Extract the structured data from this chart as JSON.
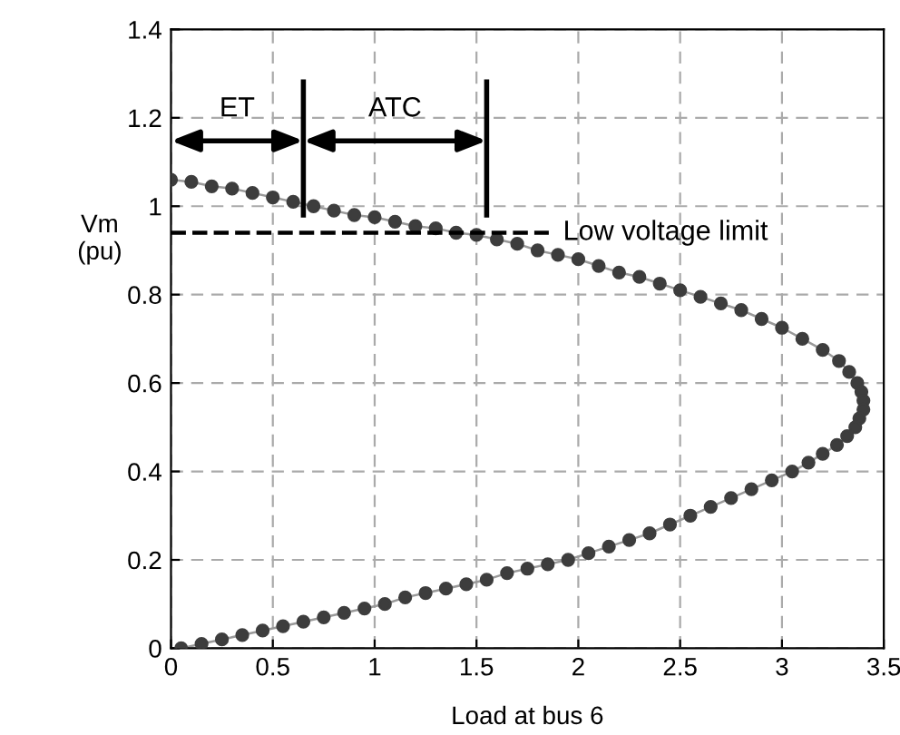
{
  "chart_data": {
    "type": "line",
    "xlabel": "Load at bus 6",
    "ylabel": "Vm\n(pu)",
    "xlim": [
      0,
      3.5
    ],
    "ylim": [
      0,
      1.4
    ],
    "xticks": [
      0,
      0.5,
      1,
      1.5,
      2,
      2.5,
      3,
      3.5
    ],
    "yticks": [
      0,
      0.2,
      0.4,
      0.6,
      0.8,
      1,
      1.2,
      1.4
    ],
    "grid": true,
    "marker": "circle",
    "line_style": "solid",
    "series": [
      {
        "color": "#3d3d3d",
        "x": [
          0,
          0.1,
          0.2,
          0.3,
          0.4,
          0.5,
          0.6,
          0.7,
          0.8,
          0.9,
          1.0,
          1.1,
          1.2,
          1.3,
          1.4,
          1.5,
          1.6,
          1.7,
          1.8,
          1.9,
          2.0,
          2.1,
          2.2,
          2.3,
          2.4,
          2.5,
          2.6,
          2.7,
          2.8,
          2.9,
          3.0,
          3.1,
          3.2,
          3.28,
          3.33,
          3.37,
          3.39,
          3.4,
          3.4,
          3.38,
          3.36,
          3.32,
          3.27,
          3.2,
          3.13,
          3.05,
          2.95,
          2.85,
          2.75,
          2.65,
          2.55,
          2.45,
          2.35,
          2.25,
          2.15,
          2.05,
          1.95,
          1.85,
          1.75,
          1.65,
          1.55,
          1.45,
          1.35,
          1.25,
          1.15,
          1.05,
          0.95,
          0.85,
          0.75,
          0.65,
          0.55,
          0.45,
          0.35,
          0.25,
          0.15,
          0.05
        ],
        "values": [
          1.06,
          1.055,
          1.045,
          1.04,
          1.03,
          1.02,
          1.01,
          1.0,
          0.99,
          0.98,
          0.975,
          0.965,
          0.955,
          0.95,
          0.94,
          0.935,
          0.925,
          0.915,
          0.9,
          0.89,
          0.88,
          0.865,
          0.85,
          0.84,
          0.825,
          0.81,
          0.795,
          0.78,
          0.765,
          0.745,
          0.725,
          0.7,
          0.675,
          0.65,
          0.625,
          0.6,
          0.58,
          0.56,
          0.54,
          0.52,
          0.5,
          0.48,
          0.46,
          0.44,
          0.42,
          0.4,
          0.38,
          0.36,
          0.34,
          0.32,
          0.3,
          0.28,
          0.26,
          0.245,
          0.23,
          0.215,
          0.2,
          0.19,
          0.18,
          0.17,
          0.155,
          0.145,
          0.135,
          0.125,
          0.115,
          0.1,
          0.09,
          0.08,
          0.07,
          0.06,
          0.05,
          0.04,
          0.03,
          0.02,
          0.01,
          0.0
        ]
      }
    ],
    "ref_lines": [
      {
        "axis": "y",
        "value": 0.94,
        "label": "Low voltage limit",
        "line_style": "dashed",
        "color": "#000000"
      },
      {
        "axis": "x",
        "value": 0.65,
        "color": "#000000"
      },
      {
        "axis": "x",
        "value": 1.55,
        "color": "#000000"
      }
    ],
    "annotations": [
      "ET",
      "ATC"
    ]
  }
}
